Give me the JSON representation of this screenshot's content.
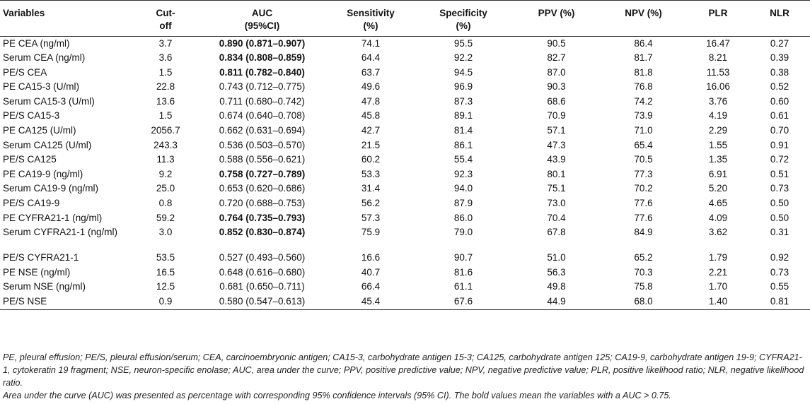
{
  "headers": [
    "Variables",
    "Cut-\noff",
    "AUC\n(95%CI)",
    "Sensitivity\n(%)",
    "Specificity\n(%)",
    "PPV (%)",
    "NPV (%)",
    "PLR",
    "NLR"
  ],
  "rows": [
    [
      "PE CEA (ng/ml)",
      "3.7",
      "0.890 (0.871–0.907)",
      "74.1",
      "95.5",
      "90.5",
      "86.4",
      "16.47",
      "0.27"
    ],
    [
      "Serum CEA (ng/ml)",
      "3.6",
      "0.834 (0.808–0.859)",
      "64.4",
      "92.2",
      "82.7",
      "81.7",
      "8.21",
      "0.39"
    ],
    [
      "PE/S CEA",
      "1.5",
      "0.811 (0.782–0.840)",
      "63.7",
      "94.5",
      "87.0",
      "81.8",
      "11.53",
      "0.38"
    ],
    [
      "PE CA15-3 (U/ml)",
      "22.8",
      "0.743 (0.712–0.775)",
      "49.6",
      "96.9",
      "90.3",
      "76.8",
      "16.06",
      "0.52"
    ],
    [
      "Serum CA15-3 (U/ml)",
      "13.6",
      "0.711 (0.680–0.742)",
      "47.8",
      "87.3",
      "68.6",
      "74.2",
      "3.76",
      "0.60"
    ],
    [
      "PE/S CA15-3",
      "1.5",
      "0.674 (0.640–0.708)",
      "45.8",
      "89.1",
      "70.9",
      "73.9",
      "4.19",
      "0.61"
    ],
    [
      "PE CA125 (U/ml)",
      "2056.7",
      "0.662 (0.631–0.694)",
      "42.7",
      "81.4",
      "57.1",
      "71.0",
      "2.29",
      "0.70"
    ],
    [
      "Serum CA125 (U/ml)",
      "243.3",
      "0.536 (0.503–0.570)",
      "21.5",
      "86.1",
      "47.3",
      "65.4",
      "1.55",
      "0.91"
    ],
    [
      "PE/S CA125",
      "11.3",
      "0.588 (0.556–0.621)",
      "60.2",
      "55.4",
      "43.9",
      "70.5",
      "1.35",
      "0.72"
    ],
    [
      "PE CA19-9 (ng/ml)",
      "9.2",
      "0.758 (0.727–0.789)",
      "53.3",
      "92.3",
      "80.1",
      "77.3",
      "6.91",
      "0.51"
    ],
    [
      "Serum CA19-9 (ng/ml)",
      "25.0",
      "0.653 (0.620–0.686)",
      "31.4",
      "94.0",
      "75.1",
      "70.2",
      "5.20",
      "0.73"
    ],
    [
      "PE/S CA19-9",
      "0.8",
      "0.720 (0.688–0.753)",
      "56.2",
      "87.9",
      "73.0",
      "77.6",
      "4.65",
      "0.50"
    ],
    [
      "PE CYFRA21-1 (ng/ml)",
      "59.2",
      "0.764 (0.735–0.793)",
      "57.3",
      "86.0",
      "70.4",
      "77.6",
      "4.09",
      "0.50"
    ],
    [
      "Serum CYFRA21-1 (ng/ml)",
      "3.0",
      "0.852 (0.830–0.874)",
      "75.9",
      "79.0",
      "67.8",
      "84.9",
      "3.62",
      "0.31"
    ],
    [
      "PE/S CYFRA21-1",
      "53.5",
      "0.527 (0.493–0.560)",
      "16.6",
      "90.7",
      "51.0",
      "65.2",
      "1.79",
      "0.92"
    ],
    [
      "PE NSE (ng/ml)",
      "16.5",
      "0.648 (0.616–0.680)",
      "40.7",
      "81.6",
      "56.3",
      "70.3",
      "2.21",
      "0.73"
    ],
    [
      "Serum NSE (ng/ml)",
      "12.5",
      "0.681 (0.650–0.711)",
      "66.4",
      "61.1",
      "49.8",
      "75.8",
      "1.70",
      "0.55"
    ],
    [
      "PE/S NSE",
      "0.9",
      "0.580 (0.547–0.613)",
      "45.4",
      "67.6",
      "44.9",
      "68.0",
      "1.40",
      "0.81"
    ]
  ],
  "bold_auc_rows": [
    0,
    1,
    2,
    9,
    12,
    13
  ],
  "notes": {
    "abbreviations": "PE, pleural effusion; PE/S, pleural effusion/serum; CEA, carcinoembryonic antigen; CA15-3, carbohydrate antigen 15-3; CA125, carbohydrate antigen 125; CA19-9, carbohydrate antigen 19-9; CYFRA21-1, cytokeratin 19 fragment; NSE, neuron-specific enolase; AUC, area under the curve; PPV, positive predictive value; NPV, negative predictive value; PLR, positive likelihood ratio; NLR, negative likelihood ratio.",
    "auc_note": "Area under the curve (AUC) was presented as percentage with corresponding 95% confidence intervals (95% CI). The bold values mean the variables with a AUC > 0.75."
  }
}
